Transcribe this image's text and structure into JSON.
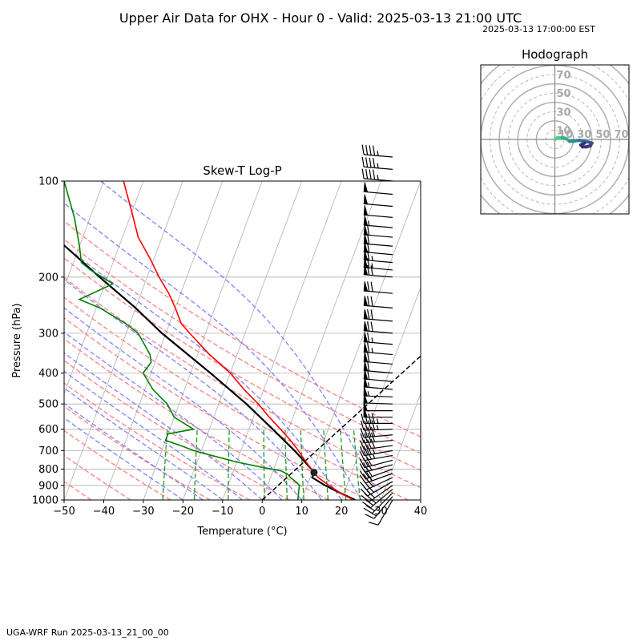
{
  "header": {
    "title": "Upper Air Data for OHX - Hour 0 - Valid: 2025-03-13 21:00 UTC",
    "local_time": "2025-03-13 17:00:00 EST",
    "footer": "UGA-WRF Run 2025-03-13_21_00_00"
  },
  "colors": {
    "temperature": "#ff0000",
    "dewpoint": "#008000",
    "parcel": "#000000",
    "dry_adiabat": "#ff6b6b",
    "moist_adiabat": "#6b6bff",
    "mixing_ratio": "#229922",
    "hodo_ring": "#b0b0b0",
    "hodo_trace": "#2d3a8c"
  },
  "chart_data": [
    {
      "type": "line",
      "title": "Skew-T Log-P",
      "xlabel": "Temperature (°C)",
      "ylabel": "Pressure (hPa)",
      "xlim": [
        -50,
        40
      ],
      "ylim": [
        1000,
        100
      ],
      "y_scale": "log",
      "x_ticks": [
        "−50",
        "−40",
        "−30",
        "−20",
        "−10",
        "0",
        "10",
        "20",
        "30",
        "40"
      ],
      "y_ticks": [
        "100",
        "200",
        "300",
        "400",
        "500",
        "600",
        "700",
        "800",
        "900",
        "1000"
      ],
      "grid": true,
      "series": [
        {
          "key": "temperature",
          "points": [
            [
              1000,
              23
            ],
            [
              950,
              19
            ],
            [
              900,
              15.5
            ],
            [
              850,
              12
            ],
            [
              820,
              10.5
            ],
            [
              800,
              9.5
            ],
            [
              750,
              7
            ],
            [
              700,
              4.5
            ],
            [
              650,
              1.5
            ],
            [
              600,
              -2
            ],
            [
              550,
              -6
            ],
            [
              500,
              -10
            ],
            [
              450,
              -15
            ],
            [
              400,
              -20
            ],
            [
              350,
              -27
            ],
            [
              300,
              -34
            ],
            [
              280,
              -37
            ],
            [
              250,
              -40
            ],
            [
              225,
              -43
            ],
            [
              200,
              -47
            ],
            [
              175,
              -51
            ],
            [
              150,
              -56
            ],
            [
              125,
              -60
            ],
            [
              100,
              -65
            ]
          ]
        },
        {
          "key": "dewpoint",
          "points": [
            [
              1000,
              9
            ],
            [
              950,
              8.5
            ],
            [
              900,
              8
            ],
            [
              880,
              7
            ],
            [
              850,
              5
            ],
            [
              830,
              4
            ],
            [
              810,
              2
            ],
            [
              790,
              -3
            ],
            [
              760,
              -10
            ],
            [
              720,
              -18
            ],
            [
              700,
              -22
            ],
            [
              680,
              -25
            ],
            [
              650,
              -30
            ],
            [
              620,
              -30
            ],
            [
              600,
              -24
            ],
            [
              550,
              -30
            ],
            [
              500,
              -33
            ],
            [
              450,
              -38
            ],
            [
              400,
              -42
            ],
            [
              370,
              -41
            ],
            [
              350,
              -42
            ],
            [
              300,
              -47
            ],
            [
              280,
              -51
            ],
            [
              250,
              -59
            ],
            [
              235,
              -65
            ],
            [
              210,
              -58
            ],
            [
              190,
              -65
            ],
            [
              180,
              -68
            ],
            [
              160,
              -70
            ],
            [
              130,
              -74
            ],
            [
              100,
              -80
            ]
          ]
        },
        {
          "key": "parcel",
          "points": [
            [
              1000,
              23.5
            ],
            [
              950,
              19
            ],
            [
              900,
              14.5
            ],
            [
              850,
              10.5
            ],
            [
              820,
              10.5
            ],
            [
              800,
              9.5
            ],
            [
              700,
              3.5
            ],
            [
              600,
              -4
            ],
            [
              500,
              -13
            ],
            [
              400,
              -25
            ],
            [
              300,
              -41
            ],
            [
              250,
              -50
            ],
            [
              200,
              -62
            ],
            [
              150,
              -77
            ],
            [
              130,
              -84
            ]
          ]
        }
      ],
      "lcl": {
        "pressure": 820,
        "temperature": 10.5
      },
      "freezing_line": {
        "points": [
          [
            1000,
            0
          ],
          [
            200,
            41
          ],
          [
            130,
            53
          ]
        ]
      },
      "dry_adiabat_thetas_K": [
        230,
        240,
        250,
        260,
        270,
        280,
        290,
        300,
        310,
        320,
        330,
        340,
        350
      ],
      "moist_adiabat_start_C": [
        -20,
        -15,
        -10,
        -5,
        0,
        5,
        10,
        15,
        20,
        25,
        30
      ],
      "mixing_ratio_gkg": [
        0.5,
        1,
        2,
        4,
        6,
        8,
        12,
        16,
        20
      ],
      "isotherm_temps_C": [
        -160,
        -150,
        -140,
        -130,
        -120,
        -110,
        -100,
        -90,
        -80,
        -70,
        -60,
        -50,
        -40,
        -30,
        -20,
        -10,
        0,
        10,
        20,
        30,
        40
      ],
      "wind_barbs": [
        {
          "p": 1000,
          "dir": 210,
          "spd": 10
        },
        {
          "p": 975,
          "dir": 220,
          "spd": 15
        },
        {
          "p": 950,
          "dir": 225,
          "spd": 20
        },
        {
          "p": 925,
          "dir": 230,
          "spd": 25
        },
        {
          "p": 900,
          "dir": 235,
          "spd": 28
        },
        {
          "p": 875,
          "dir": 240,
          "spd": 30
        },
        {
          "p": 850,
          "dir": 245,
          "spd": 32
        },
        {
          "p": 825,
          "dir": 250,
          "spd": 32
        },
        {
          "p": 800,
          "dir": 250,
          "spd": 30
        },
        {
          "p": 775,
          "dir": 255,
          "spd": 30
        },
        {
          "p": 750,
          "dir": 255,
          "spd": 32
        },
        {
          "p": 725,
          "dir": 260,
          "spd": 35
        },
        {
          "p": 700,
          "dir": 260,
          "spd": 35
        },
        {
          "p": 675,
          "dir": 262,
          "spd": 38
        },
        {
          "p": 650,
          "dir": 265,
          "spd": 40
        },
        {
          "p": 625,
          "dir": 265,
          "spd": 42
        },
        {
          "p": 600,
          "dir": 268,
          "spd": 45
        },
        {
          "p": 575,
          "dir": 270,
          "spd": 45
        },
        {
          "p": 550,
          "dir": 270,
          "spd": 48
        },
        {
          "p": 525,
          "dir": 270,
          "spd": 50
        },
        {
          "p": 500,
          "dir": 272,
          "spd": 52
        },
        {
          "p": 475,
          "dir": 272,
          "spd": 55
        },
        {
          "p": 450,
          "dir": 275,
          "spd": 55
        },
        {
          "p": 425,
          "dir": 275,
          "spd": 58
        },
        {
          "p": 400,
          "dir": 275,
          "spd": 60
        },
        {
          "p": 375,
          "dir": 275,
          "spd": 62
        },
        {
          "p": 350,
          "dir": 275,
          "spd": 65
        },
        {
          "p": 325,
          "dir": 275,
          "spd": 65
        },
        {
          "p": 300,
          "dir": 275,
          "spd": 68
        },
        {
          "p": 275,
          "dir": 275,
          "spd": 70
        },
        {
          "p": 250,
          "dir": 275,
          "spd": 70
        },
        {
          "p": 225,
          "dir": 275,
          "spd": 70
        },
        {
          "p": 200,
          "dir": 275,
          "spd": 68
        },
        {
          "p": 190,
          "dir": 275,
          "spd": 66
        },
        {
          "p": 180,
          "dir": 275,
          "spd": 64
        },
        {
          "p": 170,
          "dir": 275,
          "spd": 62
        },
        {
          "p": 160,
          "dir": 275,
          "spd": 60
        },
        {
          "p": 150,
          "dir": 275,
          "spd": 58
        },
        {
          "p": 140,
          "dir": 275,
          "spd": 55
        },
        {
          "p": 130,
          "dir": 275,
          "spd": 52
        },
        {
          "p": 120,
          "dir": 275,
          "spd": 50
        },
        {
          "p": 110,
          "dir": 275,
          "spd": 48
        },
        {
          "p": 100,
          "dir": 275,
          "spd": 45
        },
        {
          "p": 95,
          "dir": 275,
          "spd": 45
        },
        {
          "p": 90,
          "dir": 275,
          "spd": 45
        }
      ]
    },
    {
      "type": "line",
      "title": "Hodograph",
      "xlim": [
        -80,
        80
      ],
      "ylim": [
        -80,
        80
      ],
      "ring_labels": [
        "10",
        "30",
        "50",
        "70"
      ],
      "grid": true,
      "trace": [
        [
          0,
          0
        ],
        [
          3,
          2
        ],
        [
          8,
          2
        ],
        [
          12,
          1
        ],
        [
          16,
          -2
        ],
        [
          20,
          -2
        ],
        [
          26,
          -1
        ],
        [
          32,
          -2
        ],
        [
          37,
          -3
        ],
        [
          40,
          -4
        ],
        [
          38,
          -7
        ],
        [
          34,
          -8
        ],
        [
          30,
          -8
        ],
        [
          28,
          -6
        ],
        [
          32,
          -4
        ]
      ]
    }
  ]
}
